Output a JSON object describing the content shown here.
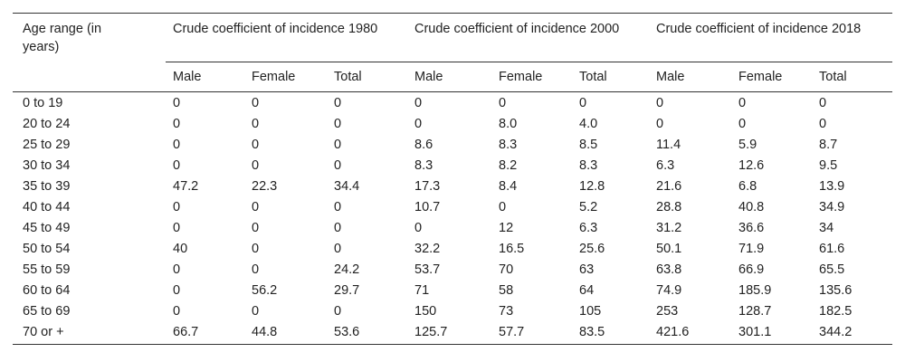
{
  "table": {
    "age_header": "Age range (in years)",
    "groups": [
      {
        "title": "Crude coefficient of incidence 1980",
        "columns": [
          "Male",
          "Female",
          "Total"
        ]
      },
      {
        "title": "Crude coefficient of incidence 2000",
        "columns": [
          "Male",
          "Female",
          "Total"
        ]
      },
      {
        "title": "Crude coefficient of incidence 2018",
        "columns": [
          "Male",
          "Female",
          "Total"
        ]
      }
    ],
    "rows": [
      [
        "0 to 19",
        "0",
        "0",
        "0",
        "0",
        "0",
        "0",
        "0",
        "0",
        "0"
      ],
      [
        "20 to 24",
        "0",
        "0",
        "0",
        "0",
        "8.0",
        "4.0",
        "0",
        "0",
        "0"
      ],
      [
        "25 to 29",
        "0",
        "0",
        "0",
        "8.6",
        "8.3",
        "8.5",
        "11.4",
        "5.9",
        "8.7"
      ],
      [
        "30 to 34",
        "0",
        "0",
        "0",
        "8.3",
        "8.2",
        "8.3",
        "6.3",
        "12.6",
        "9.5"
      ],
      [
        "35 to 39",
        "47.2",
        "22.3",
        "34.4",
        "17.3",
        "8.4",
        "12.8",
        "21.6",
        "6.8",
        "13.9"
      ],
      [
        "40 to 44",
        "0",
        "0",
        "0",
        "10.7",
        "0",
        "5.2",
        "28.8",
        "40.8",
        "34.9"
      ],
      [
        "45 to 49",
        "0",
        "0",
        "0",
        "0",
        "12",
        "6.3",
        "31.2",
        "36.6",
        "34"
      ],
      [
        "50 to 54",
        "40",
        "0",
        "0",
        "32.2",
        "16.5",
        "25.6",
        "50.1",
        "71.9",
        "61.6"
      ],
      [
        "55 to 59",
        "0",
        "0",
        "24.2",
        "53.7",
        "70",
        "63",
        "63.8",
        "66.9",
        "65.5"
      ],
      [
        "60 to 64",
        "0",
        "56.2",
        "29.7",
        "71",
        "58",
        "64",
        "74.9",
        "185.9",
        "135.6"
      ],
      [
        "65 to 69",
        "0",
        "0",
        "0",
        "150",
        "73",
        "105",
        "253",
        "128.7",
        "182.5"
      ],
      [
        "70 or +",
        "66.7",
        "44.8",
        "53.6",
        "125.7",
        "57.7",
        "83.5",
        "421.6",
        "301.1",
        "344.2"
      ]
    ]
  }
}
